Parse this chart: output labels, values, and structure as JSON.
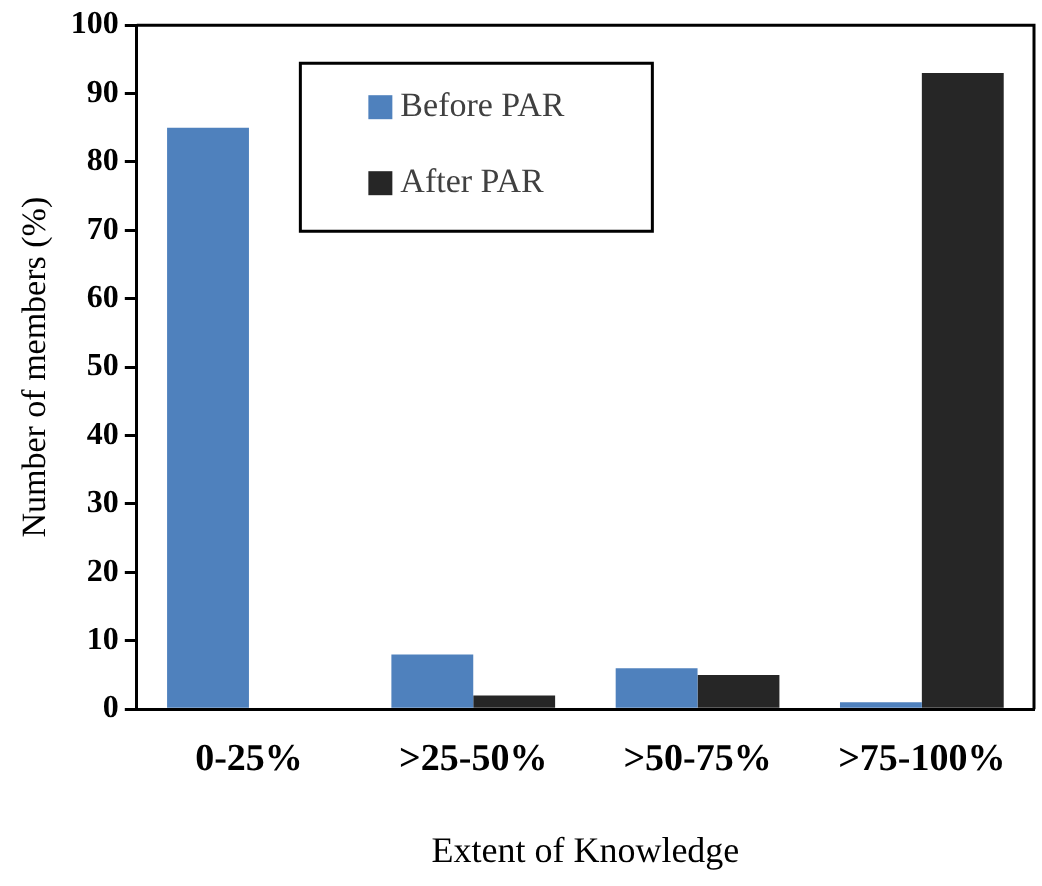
{
  "chart_data": {
    "type": "bar",
    "xlabel": "Extent of Knowledge",
    "ylabel": "Number of members (%)",
    "categories": [
      "0-25%",
      ">25-50%",
      ">50-75%",
      ">75-100%"
    ],
    "series": [
      {
        "name": "Before PAR",
        "color": "#4f81bd",
        "values": [
          85,
          8,
          6,
          1
        ]
      },
      {
        "name": "After PAR",
        "color": "#262626",
        "values": [
          0,
          2,
          5,
          93
        ]
      }
    ],
    "ylim": [
      0,
      100
    ],
    "yticks": [
      0,
      10,
      20,
      30,
      40,
      50,
      60,
      70,
      80,
      90,
      100
    ],
    "grid": false,
    "legend": "top"
  }
}
